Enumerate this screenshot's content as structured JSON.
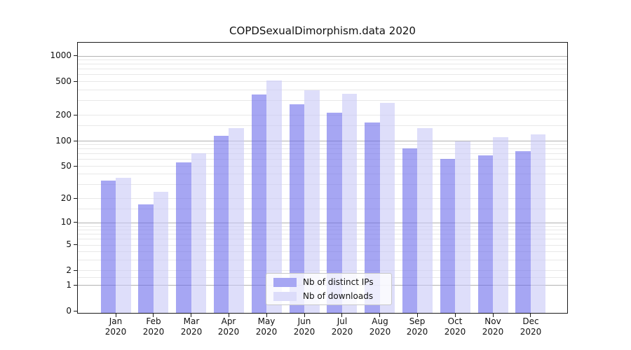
{
  "title": "COPDSexualDimorphism.data 2020",
  "legend": {
    "items": [
      {
        "label": "Nb of distinct IPs",
        "swatch_color": "#a6a6f3"
      },
      {
        "label": "Nb of downloads",
        "swatch_color": "#dcdcfa"
      }
    ],
    "position": "lower center inside plot"
  },
  "chart_data": {
    "type": "bar",
    "title": "COPDSexualDimorphism.data 2020",
    "xlabel": "",
    "ylabel": "",
    "yscale": "log1p",
    "grid": "on",
    "categories": [
      "Jan 2020",
      "Feb 2020",
      "Mar 2020",
      "Apr 2020",
      "May 2020",
      "Jun 2020",
      "Jul 2020",
      "Aug 2020",
      "Sep 2020",
      "Oct 2020",
      "Nov 2020",
      "Dec 2020"
    ],
    "series": [
      {
        "name": "Nb of distinct IPs",
        "fill": "rgba(107,107,235,0.6)",
        "swatch_hex": "#a6a6f3",
        "values": [
          33,
          17,
          55,
          113,
          351,
          268,
          214,
          164,
          80,
          60,
          66,
          75
        ]
      },
      {
        "name": "Nb of downloads",
        "fill": "rgba(200,200,247,0.6)",
        "swatch_hex": "#dcdcfa",
        "values": [
          36,
          24,
          70,
          140,
          513,
          389,
          353,
          279,
          140,
          98,
          110,
          117
        ]
      }
    ],
    "ytick_values": [
      0,
      1,
      2,
      5,
      10,
      20,
      50,
      100,
      200,
      500,
      1000
    ],
    "ytick_labels": [
      "0",
      "1",
      "2",
      "5",
      "10",
      "20",
      "50",
      "100",
      "200",
      "500",
      "1000"
    ],
    "major_grid_values": [
      1,
      10,
      100,
      1000
    ],
    "minor_grid_values": [
      1.5,
      2,
      3,
      4,
      5,
      6,
      7,
      8,
      9,
      15,
      20,
      30,
      40,
      50,
      60,
      70,
      80,
      90,
      150,
      200,
      300,
      400,
      500,
      600,
      700,
      800,
      900
    ],
    "ylim": [
      0,
      1420
    ]
  },
  "colors": {
    "background": "#ffffff",
    "spine": "#1a1a1a",
    "major_grid": "#b2b2b2",
    "minor_grid": "#e8e8e8",
    "text": "#111111",
    "bar_ips": "#a6a6f3",
    "bar_downloads": "#dcdcfa",
    "legend_border": "#c9c9c9"
  }
}
